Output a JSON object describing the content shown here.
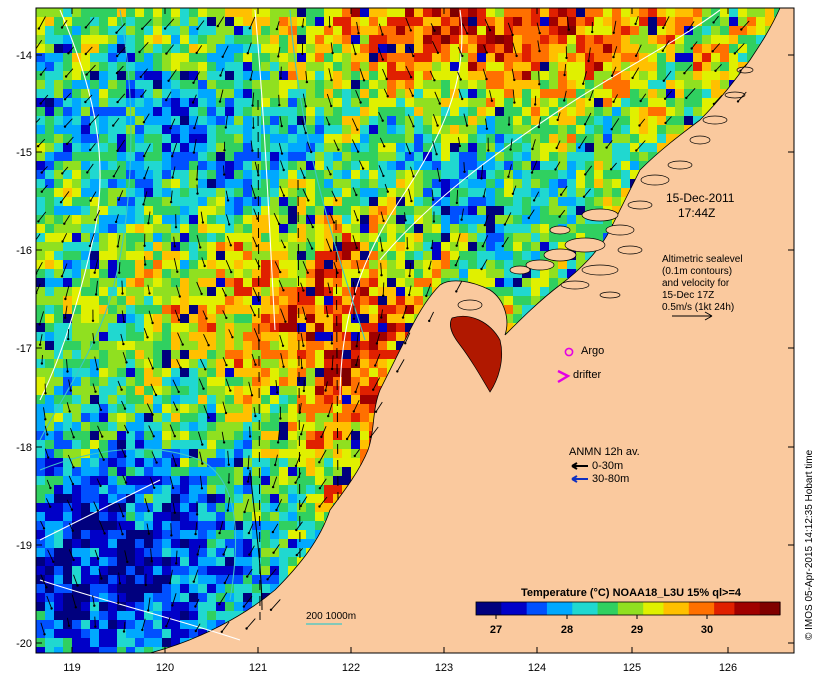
{
  "map": {
    "lon_ticks": [
      "119",
      "120",
      "121",
      "122",
      "123",
      "124",
      "125",
      "126"
    ],
    "lat_ticks": [
      "-14",
      "-15",
      "-16",
      "-17",
      "-18",
      "-19",
      "-20"
    ],
    "date_line1": "15-Dec-2011",
    "date_line2": "17:44Z",
    "altimetric_lines": [
      "Altimetric sealevel",
      "(0.1m contours)",
      "and velocity for",
      "15-Dec 17Z",
      "0.5m/s (1kt 24h)"
    ],
    "argo_label": "Argo",
    "drifter_label": "drifter",
    "anmn_title": "ANMN 12h av.",
    "anmn_line1": "0-30m",
    "anmn_line2": "30-80m",
    "contour_label": "200  1000m",
    "colorbar_title": "Temperature (°C) NOAA18_L3U 15% ql>=4",
    "colorbar_ticks": [
      "27",
      "28",
      "29",
      "30"
    ],
    "credit": "© IMOS 05-Apr-2015 14:12:35 Hobart time",
    "colors": {
      "land": "#FAC99E",
      "argo": "#E400E4",
      "drifter": "#E400E4",
      "contour_200": "#3CC8C8",
      "anmn_shallow": "#000000",
      "anmn_deep": "#1030C0"
    },
    "sst_palette": [
      "#00007E",
      "#0000C8",
      "#0050FF",
      "#00A8FF",
      "#20D8D0",
      "#30D060",
      "#90E020",
      "#E0F000",
      "#FFC000",
      "#FF7000",
      "#E02000",
      "#A00000",
      "#800000"
    ]
  }
}
